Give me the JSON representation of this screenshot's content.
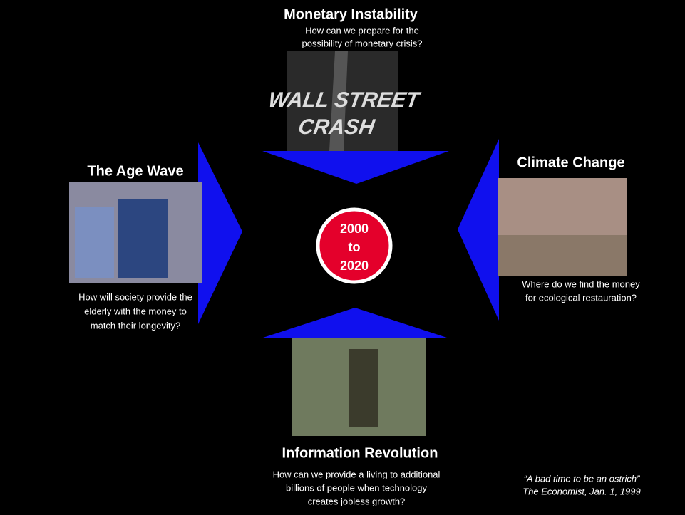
{
  "top": {
    "title": "Monetary Instability",
    "question": [
      "How can we  prepare for the",
      "possibility of monetary crisis?"
    ],
    "image_text": [
      "WALL STREET",
      "CRASH"
    ]
  },
  "left": {
    "title": "The Age Wave",
    "question": [
      "How will society provide the",
      "elderly with the money to",
      "match their longevity?"
    ]
  },
  "right": {
    "title": "Climate Change",
    "question": [
      "Where do we find the money",
      "for ecological restauration?"
    ]
  },
  "bottom": {
    "title": "Information Revolution",
    "question": [
      "How can we provide a living to additional",
      "billions of people when technology",
      "creates jobless growth?"
    ]
  },
  "center": [
    "2000",
    "to",
    "2020"
  ],
  "quote": [
    "“A bad time to be an ostrich”",
    "The Economist, Jan. 1, 1999"
  ]
}
